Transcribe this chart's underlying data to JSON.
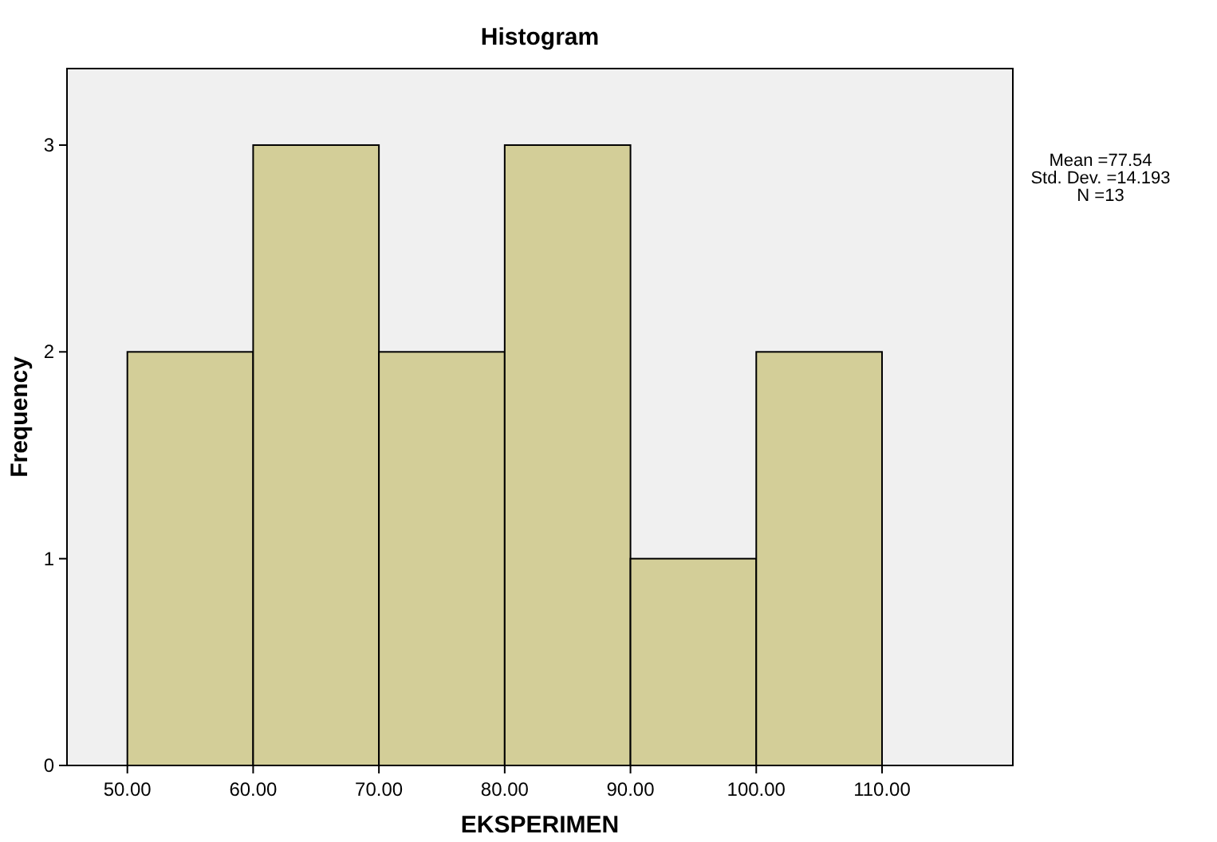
{
  "chart_data": {
    "type": "histogram",
    "title": "Histogram",
    "xlabel": "EKSPERIMEN",
    "ylabel": "Frequency",
    "bins": [
      50,
      60,
      70,
      80,
      90,
      100,
      110
    ],
    "values": [
      2,
      3,
      2,
      3,
      1,
      2
    ],
    "color": "#d3ce98",
    "xlim": [
      45.2,
      120.4
    ],
    "xticks": [
      {
        "value": 50,
        "label": "50.00"
      },
      {
        "value": 60,
        "label": "60.00"
      },
      {
        "value": 70,
        "label": "70.00"
      },
      {
        "value": 80,
        "label": "80.00"
      },
      {
        "value": 90,
        "label": "90.00"
      },
      {
        "value": 100,
        "label": "100.00"
      },
      {
        "value": 110,
        "label": "110.00"
      }
    ],
    "ylim": [
      0,
      3.37
    ],
    "yticks": [
      0,
      1,
      2,
      3
    ],
    "annotations": [
      "Mean =77.54",
      "Std. Dev. =14.193",
      "N =13"
    ],
    "grid": false
  }
}
